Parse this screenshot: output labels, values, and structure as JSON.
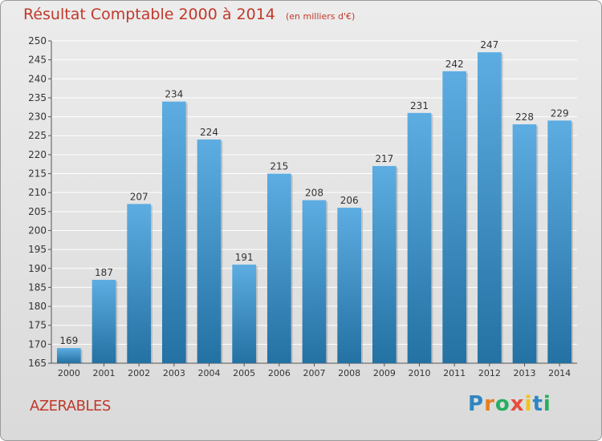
{
  "title": "Résultat Comptable 2000 à 2014",
  "unit_label": "(en milliers d'€)",
  "commune": "AZERABLES",
  "logo": "Proxiti",
  "colors": {
    "title": "#c0392b",
    "bar_top": "#5dade2",
    "bar_bottom": "#2471a3",
    "grid": "#ffffff",
    "axis": "#555555"
  },
  "chart_data": {
    "type": "bar",
    "title": "Résultat Comptable 2000 à 2014",
    "subtitle": "(en milliers d'€)",
    "xlabel": "",
    "ylabel": "",
    "categories": [
      "2000",
      "2001",
      "2002",
      "2003",
      "2004",
      "2005",
      "2006",
      "2007",
      "2008",
      "2009",
      "2010",
      "2011",
      "2012",
      "2013",
      "2014"
    ],
    "values": [
      169,
      187,
      207,
      234,
      224,
      191,
      215,
      208,
      206,
      217,
      231,
      242,
      247,
      228,
      229
    ],
    "ylim": [
      165,
      250
    ],
    "yticks": [
      165,
      170,
      175,
      180,
      185,
      190,
      195,
      200,
      205,
      210,
      215,
      220,
      225,
      230,
      235,
      240,
      245,
      250
    ],
    "grid": true
  }
}
